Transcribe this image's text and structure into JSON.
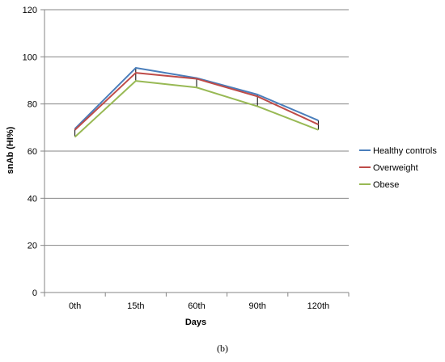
{
  "caption": "(b)",
  "chart_data": {
    "type": "line",
    "xlabel": "Days",
    "ylabel": "snAb (HI%)",
    "categories": [
      "0th",
      "15th",
      "60th",
      "90th",
      "120th"
    ],
    "ylim": [
      0,
      120
    ],
    "yticks": [
      0,
      20,
      40,
      60,
      80,
      100,
      120
    ],
    "grid": "horizontal",
    "legend_position": "right",
    "error_bars": true,
    "series": [
      {
        "name": "Healthy controls",
        "color": "#4a7ebb",
        "values": [
          69.5,
          95.3,
          91.0,
          84.0,
          73.0
        ]
      },
      {
        "name": "Overweight",
        "color": "#be4b48",
        "values": [
          69.0,
          93.2,
          90.7,
          83.2,
          71.3
        ]
      },
      {
        "name": "Obese",
        "color": "#98b954",
        "values": [
          66.0,
          89.8,
          87.0,
          79.0,
          69.0
        ]
      }
    ],
    "error_segments": [
      {
        "category": "0th",
        "low": 66.0,
        "high": 69.5
      },
      {
        "category": "15th",
        "low": 89.8,
        "high": 95.3
      },
      {
        "category": "60th",
        "low": 87.0,
        "high": 91.0
      },
      {
        "category": "90th",
        "low": 79.0,
        "high": 84.0
      },
      {
        "category": "120th",
        "low": 69.0,
        "high": 73.0
      }
    ]
  }
}
